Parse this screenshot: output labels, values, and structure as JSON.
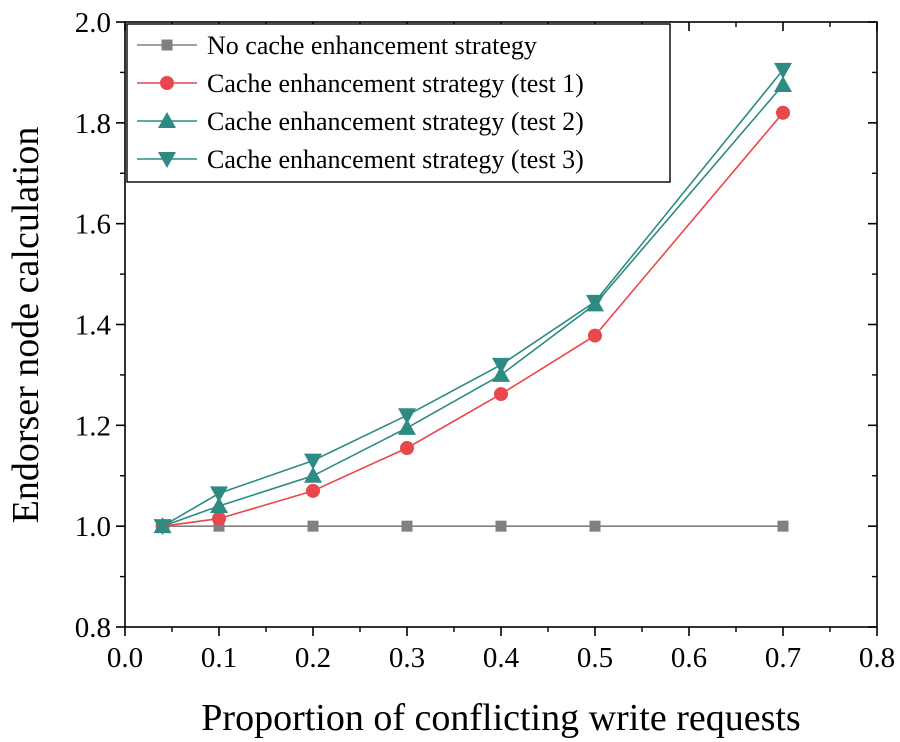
{
  "chart_data": {
    "type": "line",
    "xlabel": "Proportion of conflicting write requests",
    "ylabel": "Endorser node calculation",
    "xlim": [
      0.0,
      0.8
    ],
    "ylim": [
      0.8,
      2.0
    ],
    "xticks": [
      "0.0",
      "0.1",
      "0.2",
      "0.3",
      "0.4",
      "0.5",
      "0.6",
      "0.7",
      "0.8"
    ],
    "yticks": [
      "0.8",
      "1.0",
      "1.2",
      "1.4",
      "1.6",
      "1.8",
      "2.0"
    ],
    "grid": false,
    "legend_position": "top-left",
    "x": [
      0.04,
      0.1,
      0.2,
      0.3,
      0.4,
      0.5,
      0.7
    ],
    "series": [
      {
        "name": "No cache enhancement strategy",
        "marker": "square",
        "color": "#808080",
        "values": [
          1.0,
          1.0,
          1.0,
          1.0,
          1.0,
          1.0,
          1.0
        ]
      },
      {
        "name": "Cache enhancement strategy (test 1)",
        "marker": "circle",
        "color": "#e8474c",
        "values": [
          1.0,
          1.015,
          1.07,
          1.155,
          1.262,
          1.378,
          1.82
        ]
      },
      {
        "name": "Cache enhancement strategy (test 2)",
        "marker": "triangle-up",
        "color": "#2e8b84",
        "values": [
          1.0,
          1.04,
          1.1,
          1.195,
          1.3,
          1.44,
          1.875
        ]
      },
      {
        "name": "Cache enhancement strategy (test 3)",
        "marker": "triangle-down",
        "color": "#2e8b84",
        "values": [
          1.0,
          1.065,
          1.13,
          1.22,
          1.32,
          1.445,
          1.905
        ]
      }
    ]
  }
}
